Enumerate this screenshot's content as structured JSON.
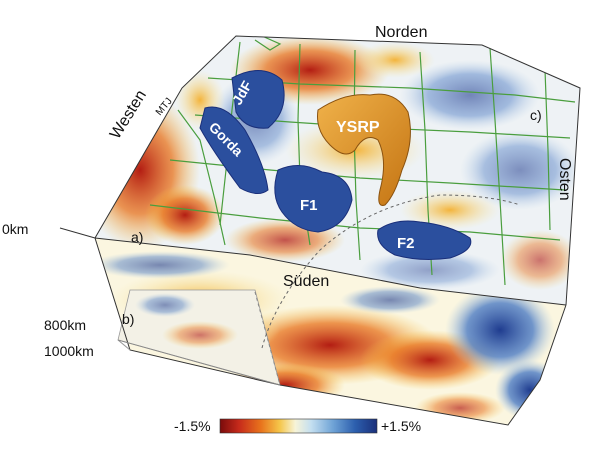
{
  "directions": {
    "north": "Norden",
    "south": "Süden",
    "west": "Westen",
    "east": "Osten"
  },
  "depths": {
    "top": "0km",
    "mid": "800km",
    "bottom": "1000km"
  },
  "panels": {
    "a": "a)",
    "b": "b)",
    "c": "c)"
  },
  "features": {
    "jdf": "JdF",
    "gorda": "Gorda",
    "ysrp": "YSRP",
    "f1": "F1",
    "f2": "F2",
    "mtj": "MTJ"
  },
  "colorbar": {
    "min_label": "-1.5%",
    "max_label": "+1.5%",
    "colors": [
      "#7a0b0b",
      "#c62a1b",
      "#e8731c",
      "#f5c64a",
      "#f7f4d8",
      "#c4dff0",
      "#6fa3d6",
      "#2c5fae",
      "#1a2f7a"
    ]
  },
  "colors": {
    "slow": "#c62a1b",
    "fast": "#2c5fae",
    "ysrp": "#e79a25",
    "borders": "#4a9e3e"
  }
}
